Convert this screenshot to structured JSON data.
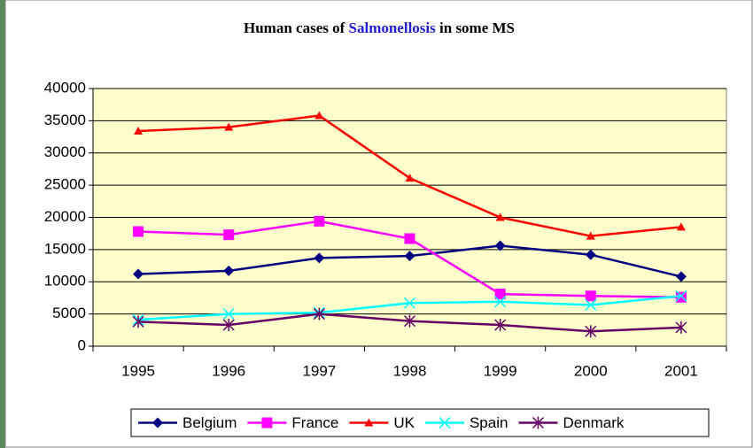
{
  "chart_data": {
    "type": "line",
    "title_parts": [
      "Human cases of ",
      "Salmonellosis",
      " in some MS"
    ],
    "title_highlight_color": "#1f1fd0",
    "categories": [
      "1995",
      "1996",
      "1997",
      "1998",
      "1999",
      "2000",
      "2001"
    ],
    "series": [
      {
        "name": "Belgium",
        "color": "#000080",
        "marker": "diamond",
        "values": [
          11200,
          11700,
          13700,
          14000,
          15600,
          14200,
          10800
        ]
      },
      {
        "name": "France",
        "color": "#ff00ff",
        "marker": "square",
        "values": [
          17800,
          17300,
          19400,
          16700,
          8100,
          7800,
          7600
        ]
      },
      {
        "name": "UK",
        "color": "#ff0000",
        "marker": "triangle",
        "values": [
          33400,
          34000,
          35800,
          26100,
          20000,
          17100,
          18500
        ]
      },
      {
        "name": "Spain",
        "color": "#00ffff",
        "marker": "x",
        "values": [
          4100,
          5000,
          5200,
          6700,
          6900,
          6400,
          7800
        ]
      },
      {
        "name": "Denmark",
        "color": "#660066",
        "marker": "asterisk",
        "values": [
          3800,
          3300,
          5000,
          3900,
          3300,
          2300,
          2900
        ]
      }
    ],
    "ylim": [
      0,
      40000
    ],
    "yticks": [
      0,
      5000,
      10000,
      15000,
      20000,
      25000,
      30000,
      35000,
      40000
    ],
    "grid": true,
    "legend": "bottom",
    "plot_background": "#ffffcc"
  }
}
